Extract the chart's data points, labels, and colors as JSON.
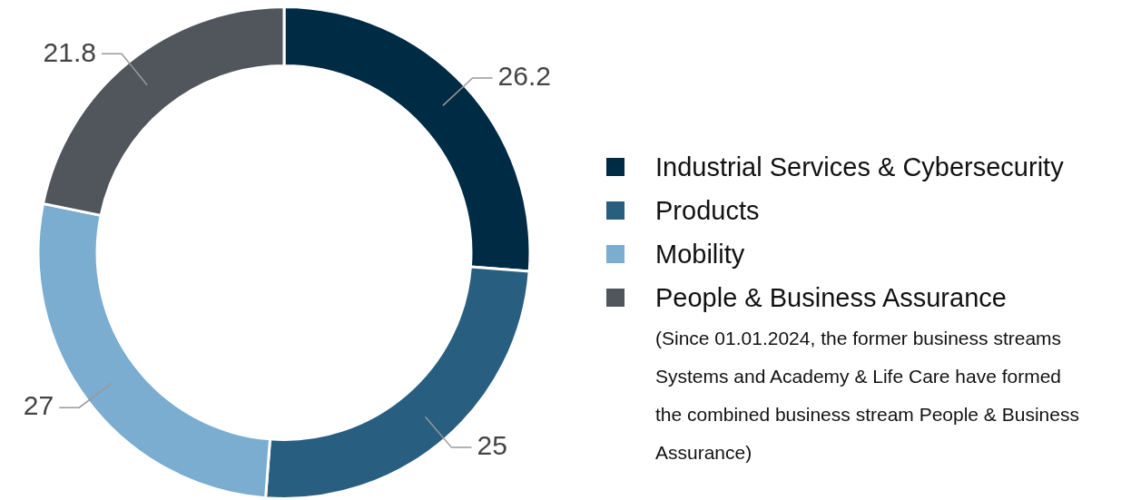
{
  "chart_data": {
    "type": "donut",
    "categories": [
      "Industrial Services & Cybersecurity",
      "Products",
      "Mobility",
      "People & Business Assurance"
    ],
    "values": [
      26.2,
      25,
      27,
      21.8
    ],
    "colors": [
      "#002b45",
      "#285e80",
      "#7aadcf",
      "#50565c"
    ],
    "data_labels": true,
    "legend": "right",
    "annotations": [
      "(Since 01.01.2024, the former business streams Systems and Academy & Life Care have formed the combined business stream People & Business Assurance)"
    ]
  }
}
